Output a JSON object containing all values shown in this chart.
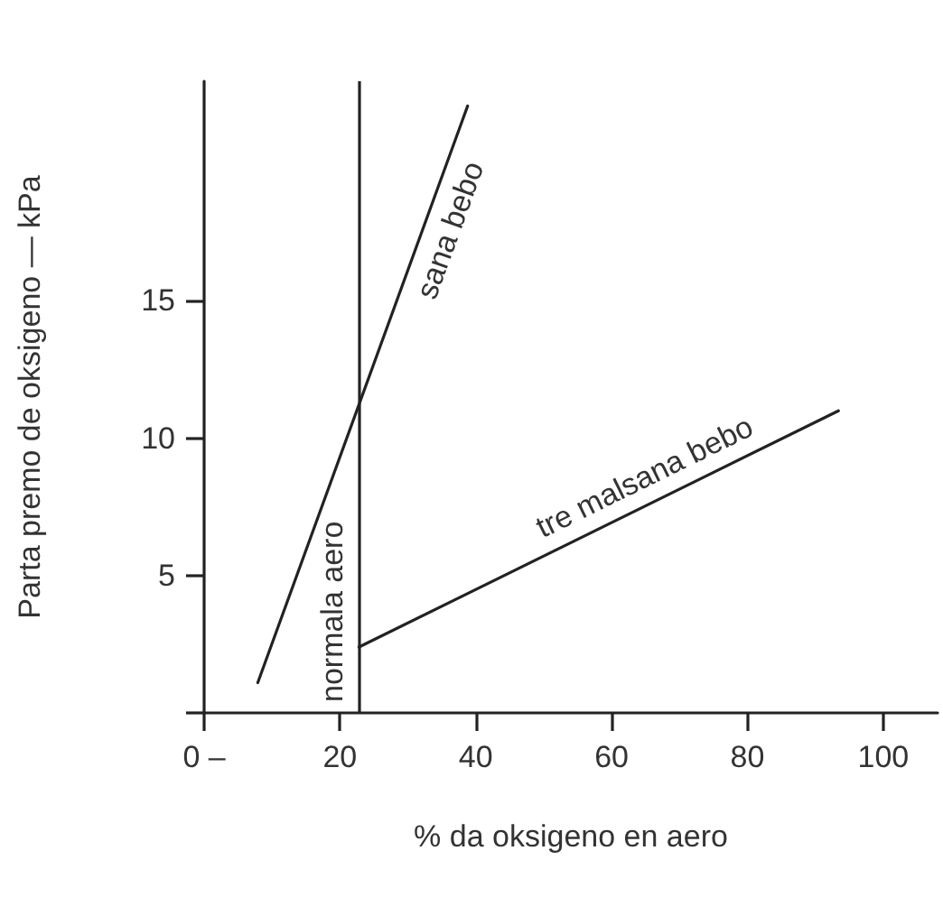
{
  "chart_data": {
    "type": "line",
    "xlabel": "% da oksigeno en aero",
    "ylabel": "Parta premo de oksigeno — kPa",
    "series": [
      {
        "name": "sana bebo",
        "color": "#222222",
        "x": [
          7.9,
          38.8
        ],
        "values": [
          1.1,
          22.1
        ]
      },
      {
        "name": "tre malsana bebo",
        "color": "#222222",
        "x": [
          22.8,
          93.4
        ],
        "values": [
          2.4,
          11.0
        ]
      }
    ],
    "ref_lines": [
      {
        "axis": "x",
        "value": 22.8,
        "label": "normala aero",
        "color": "#222222"
      }
    ],
    "xlim": [
      0,
      108
    ],
    "ylim": [
      0,
      23
    ],
    "xticks": [
      {
        "value": 0,
        "label": "0 –"
      },
      20,
      40,
      60,
      80,
      100
    ],
    "yticks": [
      {
        "value": 0,
        "label": null
      },
      5,
      10,
      15
    ],
    "grid": false,
    "legend": false,
    "marker": "none",
    "line_style": "solid"
  }
}
